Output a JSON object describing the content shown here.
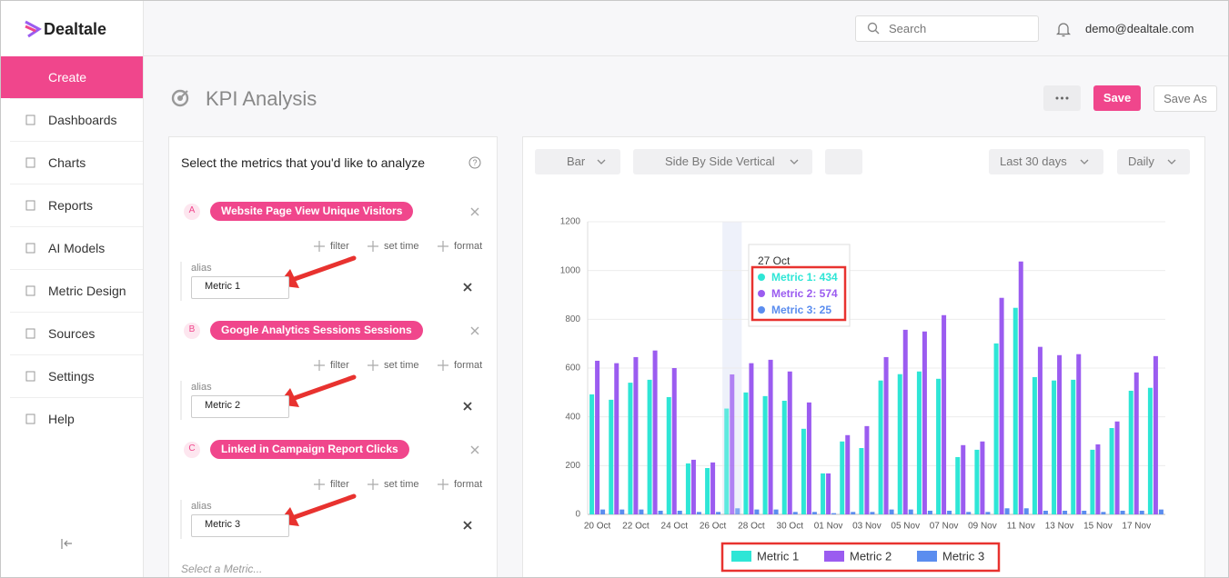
{
  "header": {
    "logo": "Dealtale",
    "search_placeholder": "Search",
    "user": "demo@dealtale.com"
  },
  "sidebar": {
    "items": [
      "Create",
      "Dashboards",
      "Charts",
      "Reports",
      "AI Models",
      "Metric Design",
      "Sources",
      "Settings",
      "Help"
    ]
  },
  "page": {
    "title": "KPI Analysis",
    "save": "Save",
    "save_as": "Save As"
  },
  "metrics_panel": {
    "heading": "Select the metrics that you'd like to analyze",
    "metrics": [
      {
        "letter": "A",
        "name": "Website Page View Unique Visitors",
        "alias": "Metric 1"
      },
      {
        "letter": "B",
        "name": "Google Analytics Sessions Sessions",
        "alias": "Metric 2"
      },
      {
        "letter": "C",
        "name": "Linked in Campaign Report Clicks",
        "alias": "Metric 3"
      }
    ],
    "actions": [
      "filter",
      "set time",
      "format"
    ],
    "alias_label": "alias",
    "placeholder": "Select a Metric..."
  },
  "toolbar": {
    "chart_type": "Bar",
    "layout": "Side By Side Vertical",
    "range": "Last 30 days",
    "granularity": "Daily"
  },
  "chart_data": {
    "type": "bar",
    "categories": [
      "20 Oct",
      null,
      "22 Oct",
      null,
      "24 Oct",
      null,
      "26 Oct",
      null,
      "28 Oct",
      null,
      "30 Oct",
      null,
      "01 Nov",
      null,
      "03 Nov",
      null,
      "05 Nov",
      null,
      "07 Nov",
      null,
      "09 Nov",
      null,
      "11 Nov",
      null,
      "13 Nov",
      null,
      "15 Nov",
      null,
      "17 Nov",
      null
    ],
    "series": [
      {
        "name": "Metric 1",
        "color": "#2ee6d6",
        "values": [
          492,
          470,
          540,
          552,
          481,
          209,
          190,
          434,
          500,
          485,
          466,
          351,
          168,
          299,
          272,
          549,
          575,
          586,
          556,
          235,
          265,
          701,
          847,
          563,
          549,
          552,
          265,
          354,
          507,
          519
        ]
      },
      {
        "name": "Metric 2",
        "color": "#9b5cf0",
        "values": [
          630,
          620,
          645,
          672,
          600,
          224,
          213,
          574,
          620,
          634,
          586,
          459,
          168,
          325,
          362,
          645,
          757,
          750,
          817,
          284,
          299,
          888,
          1037,
          687,
          653,
          657,
          287,
          381,
          582,
          649
        ]
      },
      {
        "name": "Metric 3",
        "color": "#5b8def",
        "values": [
          20,
          20,
          20,
          15,
          15,
          10,
          10,
          25,
          20,
          20,
          10,
          10,
          5,
          10,
          10,
          20,
          20,
          15,
          15,
          10,
          10,
          25,
          25,
          15,
          15,
          15,
          10,
          15,
          15,
          20
        ]
      }
    ],
    "ylim": [
      0,
      1200
    ],
    "yticks": [
      0,
      200,
      400,
      600,
      800,
      1000,
      1200
    ],
    "grid": true,
    "legend": "bottom",
    "tooltip": {
      "title": "27 Oct",
      "lines": [
        "Metric 1: 434",
        "Metric 2: 574",
        "Metric 3: 25"
      ]
    }
  }
}
